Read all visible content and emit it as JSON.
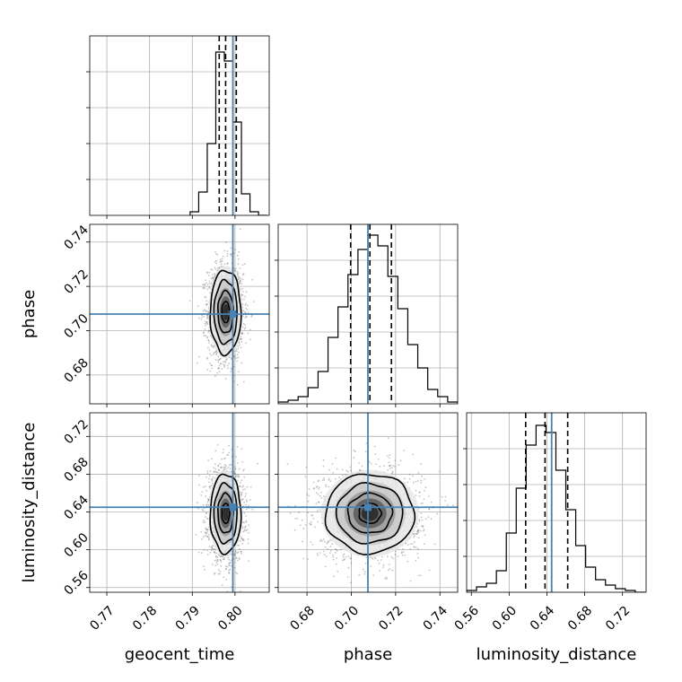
{
  "chart_data": {
    "type": "corner",
    "parameters": [
      "geocent_time",
      "phase",
      "luminosity_distance"
    ],
    "axis_labels": {
      "geocent_time": "geocent_time",
      "phase": "phase",
      "luminosity_distance": "luminosity_distance"
    },
    "ranges": {
      "geocent_time": [
        0.766,
        0.808
      ],
      "phase": [
        0.667,
        0.748
      ],
      "luminosity_distance": [
        0.555,
        0.745
      ]
    },
    "ticks": {
      "geocent_time": {
        "values": [
          0.77,
          0.78,
          0.79,
          0.8
        ],
        "labels": [
          "0.77",
          "0.78",
          "0.79",
          "0.80"
        ]
      },
      "phase": {
        "values": [
          0.68,
          0.7,
          0.72,
          0.74
        ],
        "labels": [
          "0.68",
          "0.70",
          "0.72",
          "0.74"
        ]
      },
      "luminosity_distance": {
        "values": [
          0.56,
          0.6,
          0.64,
          0.68,
          0.72
        ],
        "labels": [
          "0.56",
          "0.60",
          "0.64",
          "0.68",
          "0.72"
        ]
      }
    },
    "truths": {
      "geocent_time": 0.7995,
      "phase": 0.7075,
      "luminosity_distance": 0.645
    },
    "quantiles": {
      "geocent_time": [
        0.7963,
        0.7978,
        0.8003
      ],
      "phase": [
        0.6997,
        0.7084,
        0.7181
      ],
      "luminosity_distance": [
        0.6175,
        0.638,
        0.662
      ]
    },
    "histograms": {
      "geocent_time": {
        "edges": [
          0.7895,
          0.7915,
          0.7935,
          0.7955,
          0.7975,
          0.7995,
          0.8015,
          0.8035,
          0.8055,
          0.8075
        ],
        "counts": [
          0.02,
          0.13,
          0.4,
          0.91,
          0.86,
          0.52,
          0.12,
          0.02,
          0.0
        ]
      },
      "phase": {
        "edges": [
          0.667,
          0.6715,
          0.676,
          0.6805,
          0.685,
          0.6895,
          0.694,
          0.6985,
          0.703,
          0.7075,
          0.712,
          0.7165,
          0.721,
          0.7255,
          0.73,
          0.7345,
          0.739,
          0.7435,
          0.748
        ],
        "counts": [
          0.01,
          0.02,
          0.04,
          0.09,
          0.18,
          0.37,
          0.54,
          0.72,
          0.86,
          0.94,
          0.88,
          0.71,
          0.53,
          0.33,
          0.2,
          0.08,
          0.04,
          0.01
        ]
      },
      "luminosity_distance": {
        "edges": [
          0.555,
          0.5655,
          0.576,
          0.5865,
          0.597,
          0.6075,
          0.618,
          0.6285,
          0.639,
          0.6495,
          0.66,
          0.6705,
          0.681,
          0.6915,
          0.702,
          0.7125,
          0.723,
          0.7335,
          0.744
        ],
        "counts": [
          0.01,
          0.03,
          0.05,
          0.12,
          0.33,
          0.58,
          0.82,
          0.93,
          0.89,
          0.68,
          0.46,
          0.26,
          0.14,
          0.07,
          0.04,
          0.02,
          0.01,
          0.0
        ]
      }
    },
    "hist_ymax": {
      "geocent_time": 1.0,
      "phase": 1.0,
      "luminosity_distance": 1.0
    },
    "posterior_2d": {
      "geocent_time__phase": {
        "mean": [
          0.7978,
          0.7084
        ],
        "sd": [
          0.0018,
          0.0095
        ],
        "contour_sd_multiples": [
          0.5,
          1.0,
          1.5,
          2.0
        ]
      },
      "geocent_time__luminosity_distance": {
        "mean": [
          0.7978,
          0.6385
        ],
        "sd": [
          0.0018,
          0.021
        ],
        "contour_sd_multiples": [
          0.5,
          1.0,
          1.5,
          2.0
        ]
      },
      "phase__luminosity_distance": {
        "mean": [
          0.7084,
          0.6385
        ],
        "sd": [
          0.01,
          0.021
        ],
        "contour_sd_multiples": [
          0.5,
          1.0,
          1.5,
          2.0
        ]
      }
    },
    "grid": true,
    "truth_color": "#4682b4",
    "line_color": "#000000"
  }
}
